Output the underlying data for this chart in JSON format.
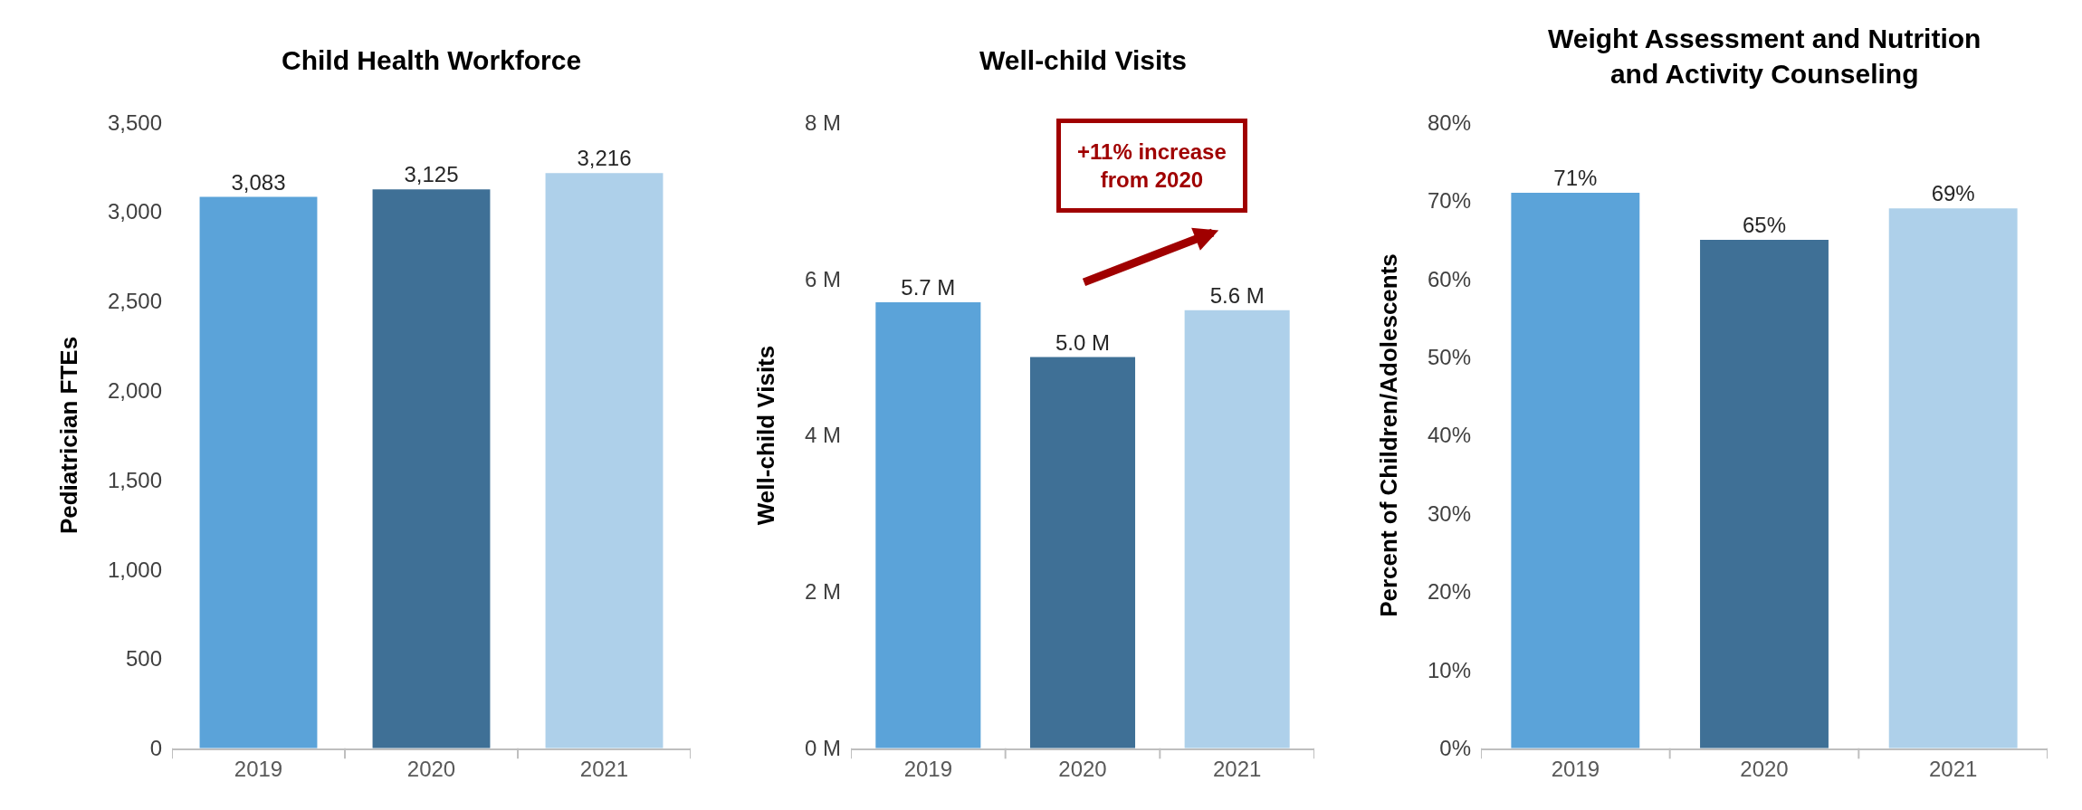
{
  "chart_data": [
    {
      "type": "bar",
      "title": "Child Health Workforce",
      "ylabel": "Pediatrician FTEs",
      "categories": [
        "2019",
        "2020",
        "2021"
      ],
      "values": [
        3083,
        3125,
        3216
      ],
      "colors": [
        "#5ba3d9",
        "#3f7096",
        "#aed0ea"
      ],
      "ylim": [
        0,
        3500
      ],
      "yticks": [
        {
          "value": 0,
          "label": "0"
        },
        {
          "value": 500,
          "label": "500"
        },
        {
          "value": 1000,
          "label": "1,000"
        },
        {
          "value": 1500,
          "label": "1,500"
        },
        {
          "value": 2000,
          "label": "2,000"
        },
        {
          "value": 2500,
          "label": "2,500"
        },
        {
          "value": 3000,
          "label": "3,000"
        },
        {
          "value": 3500,
          "label": "3,500"
        }
      ],
      "value_labels": [
        "3,083",
        "3,125",
        "3,216"
      ]
    },
    {
      "type": "bar",
      "title": "Well-child Visits",
      "ylabel": "Well-child Visits",
      "categories": [
        "2019",
        "2020",
        "2021"
      ],
      "values": [
        5.7,
        5.0,
        5.6
      ],
      "colors": [
        "#5ba3d9",
        "#3f7096",
        "#aed0ea"
      ],
      "ylim": [
        0,
        8
      ],
      "yticks": [
        {
          "value": 0,
          "label": "0 M"
        },
        {
          "value": 2,
          "label": "2 M"
        },
        {
          "value": 4,
          "label": "4 M"
        },
        {
          "value": 6,
          "label": "6 M"
        },
        {
          "value": 8,
          "label": "8 M"
        }
      ],
      "value_labels": [
        "5.7 M",
        "5.0 M",
        "5.6 M"
      ],
      "annotations": [
        "+11% increase\nfrom 2020"
      ]
    },
    {
      "type": "bar",
      "title": "Weight Assessment and Nutrition\nand Activity Counseling",
      "ylabel": "Percent of Children/Adolescents",
      "categories": [
        "2019",
        "2020",
        "2021"
      ],
      "values": [
        71,
        65,
        69
      ],
      "colors": [
        "#5ba3d9",
        "#3f7096",
        "#aed0ea"
      ],
      "ylim": [
        0,
        80
      ],
      "yticks": [
        {
          "value": 0,
          "label": "0%"
        },
        {
          "value": 10,
          "label": "10%"
        },
        {
          "value": 20,
          "label": "20%"
        },
        {
          "value": 30,
          "label": "30%"
        },
        {
          "value": 40,
          "label": "40%"
        },
        {
          "value": 50,
          "label": "50%"
        },
        {
          "value": 60,
          "label": "60%"
        },
        {
          "value": 70,
          "label": "70%"
        },
        {
          "value": 80,
          "label": "80%"
        }
      ],
      "value_labels": [
        "71%",
        "65%",
        "69%"
      ]
    }
  ]
}
